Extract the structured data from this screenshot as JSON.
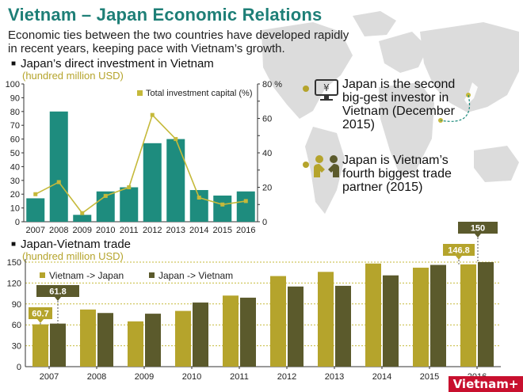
{
  "header": {
    "title": "Vietnam – Japan Economic Relations",
    "subtitle": "Economic ties between the two countries have developed rapidly in recent years, keeping pace with Vietnam’s growth."
  },
  "facts": [
    {
      "text": "Japan is the second big-gest investor in Vietnam (December 2015)",
      "icon": "monitor-yen-icon"
    },
    {
      "text": "Japan is Vietnam’s fourth biggest trade partner (2015)",
      "icon": "handshake-people-icon"
    }
  ],
  "logo": "Vietnam+",
  "colors": {
    "teal": "#1e8c7e",
    "olive_light": "#b5a42c",
    "olive_dark": "#5b5a2c",
    "line": "#c5b93a",
    "map": "#dcdcdc",
    "title": "#1e7f77"
  },
  "chart_data": [
    {
      "type": "bar",
      "title": "Japan’s direct investment in Vietnam",
      "unit": "(hundred million USD)",
      "categories": [
        "2007",
        "2008",
        "2009",
        "2010",
        "2011",
        "2012",
        "2013",
        "2014",
        "2015",
        "2016"
      ],
      "ylim": [
        0,
        100
      ],
      "yticks": [
        0,
        10,
        20,
        30,
        40,
        50,
        60,
        70,
        80,
        90,
        100
      ],
      "series": [
        {
          "values": [
            17,
            80,
            5,
            22,
            25,
            57,
            60,
            23,
            19,
            22
          ],
          "color": "#1e8c7e"
        }
      ],
      "line_series": {
        "name": "Total investment capital  (%)",
        "values": [
          16,
          23,
          5,
          15,
          20,
          62,
          48,
          14,
          10,
          12
        ],
        "ylim": [
          0,
          80
        ],
        "yticks": [
          0,
          10,
          20,
          30,
          40,
          50,
          60,
          70,
          80
        ],
        "color": "#c5b93a"
      },
      "y2_top_label": "80 %",
      "grid": false
    },
    {
      "type": "bar",
      "title": "Japan-Vietnam trade",
      "unit": "(hundred million USD)",
      "categories": [
        "2007",
        "2008",
        "2009",
        "2010",
        "2011",
        "2012",
        "2013",
        "2014",
        "2015",
        "2016"
      ],
      "ylim": [
        0,
        150
      ],
      "yticks": [
        0,
        30,
        60,
        90,
        120,
        150
      ],
      "series": [
        {
          "name": "Vietnam -> Japan",
          "values": [
            60.7,
            82,
            65,
            80,
            102,
            130,
            136,
            148,
            142,
            146.8
          ],
          "color": "#b5a42c"
        },
        {
          "name": "Japan -> Vietnam",
          "values": [
            61.8,
            77,
            76,
            92,
            99,
            115,
            116,
            131,
            146,
            150
          ],
          "color": "#5b5a2c"
        }
      ],
      "callouts": [
        {
          "label": "61.8",
          "series": 1,
          "index": 0
        },
        {
          "label": "60.7",
          "series": 0,
          "index": 0
        },
        {
          "label": "146.8",
          "series": 0,
          "index": 9
        },
        {
          "label": "150",
          "series": 1,
          "index": 9
        }
      ],
      "legend": "top-left",
      "grid": true
    }
  ]
}
